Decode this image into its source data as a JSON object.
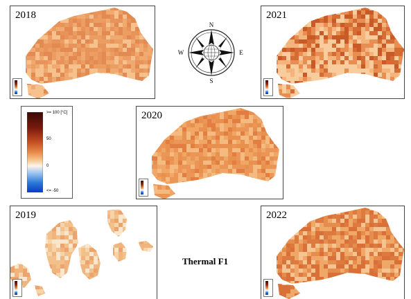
{
  "legend": {
    "max_label": ">= 100 [°C]",
    "tick_50": "50",
    "tick_0": "0",
    "min_label": "<= -50",
    "colors": [
      "#3b0a06",
      "#7a1a0c",
      "#c04a20",
      "#e88a48",
      "#f6c690",
      "#fff4e8",
      "#9cc4f0",
      "#2a7ad8",
      "#0b3cc0"
    ]
  },
  "compass": {
    "north": "N",
    "south": "S",
    "east": "E",
    "west": "W"
  },
  "caption": "Thermal F1",
  "panels": [
    {
      "id": "p2018",
      "year": "2018",
      "shape": "main",
      "palette": [
        "#e8935a",
        "#ec9d62",
        "#e28a52",
        "#f0aa70",
        "#f6c18c"
      ]
    },
    {
      "id": "p2021",
      "year": "2021",
      "shape": "main",
      "palette": [
        "#c85a28",
        "#d46c34",
        "#e88e52",
        "#f4b47c",
        "#f8cc9c"
      ]
    },
    {
      "id": "p2020",
      "year": "2020",
      "shape": "main",
      "palette": [
        "#e27e42",
        "#e8904e",
        "#f0a664",
        "#f4ba80",
        "#eb9656"
      ]
    },
    {
      "id": "p2019",
      "year": "2019",
      "shape": "strips",
      "palette": [
        "#f6d4a8",
        "#f2c08a",
        "#eca46e",
        "#fae6cc",
        "#f0b47c"
      ]
    },
    {
      "id": "p2022",
      "year": "2022",
      "shape": "main",
      "palette": [
        "#dc7a40",
        "#e68c4c",
        "#f0a868",
        "#f6c490",
        "#d87038"
      ]
    }
  ]
}
